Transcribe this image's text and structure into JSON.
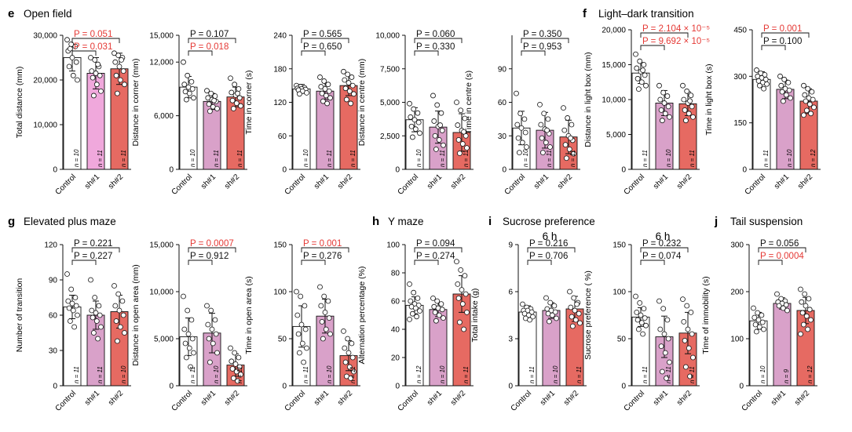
{
  "figure": {
    "panels": [
      {
        "letter": "e",
        "title": "Open field"
      },
      {
        "letter": "f",
        "title": "Light–dark transition"
      },
      {
        "letter": "g",
        "title": "Elevated plus maze"
      },
      {
        "letter": "h",
        "title": "Y maze"
      },
      {
        "letter": "i",
        "title": "Sucrose preference"
      },
      {
        "letter": "j",
        "title": "Tail suspension"
      }
    ]
  },
  "colors": {
    "control": "#ffffff",
    "sh1": "#d9a1c9",
    "sh1_bright": "#f0a8dc",
    "sh2": "#e66a62",
    "significant": "#e53935",
    "ns": "#111111"
  },
  "chart_data": [
    {
      "type": "bar",
      "id": "total-distance",
      "ylabel": "Total distance (mm)",
      "ylim": [
        0,
        30000
      ],
      "yticks": [
        "0",
        "10,000",
        "20,000",
        "30,000"
      ],
      "categories": [
        "Control",
        "sh#1",
        "sh#2"
      ],
      "values": [
        25000,
        21500,
        22500
      ],
      "errors": [
        3000,
        3500,
        3500
      ],
      "n": [
        "n = 10",
        "n = 11",
        "n = 11"
      ],
      "pvalues": [
        {
          "text": "P = 0.051",
          "sig": true
        },
        {
          "text": "P = 0.031",
          "sig": true
        }
      ],
      "points": [
        [
          29000,
          28000,
          27500,
          26500,
          25000,
          24000,
          23000,
          21000,
          20000,
          27000
        ],
        [
          25000,
          24500,
          23000,
          22000,
          21500,
          21000,
          20500,
          19000,
          17500,
          16500,
          23500
        ],
        [
          26000,
          25500,
          25000,
          24000,
          23000,
          22000,
          21000,
          20000,
          19000,
          17000,
          24500
        ]
      ]
    },
    {
      "type": "bar",
      "id": "distance-corner",
      "ylabel": "Distance in corner (mm)",
      "ylim": [
        0,
        15000
      ],
      "yticks": [
        "0",
        "6,000",
        "12,000",
        "15,000"
      ],
      "categories": [
        "Control",
        "sh#1",
        "sh#2"
      ],
      "values": [
        9200,
        7600,
        8100
      ],
      "errors": [
        1200,
        900,
        1100
      ],
      "n": [
        "n = 10",
        "n = 11",
        "n = 11"
      ],
      "pvalues": [
        {
          "text": "P = 0.107",
          "sig": false
        },
        {
          "text": "P = 0.018",
          "sig": true
        }
      ],
      "points": [
        [
          12000,
          10500,
          9800,
          9500,
          9200,
          9000,
          8700,
          8500,
          8000,
          7800
        ],
        [
          8800,
          8500,
          8200,
          8000,
          7800,
          7600,
          7300,
          7000,
          6800,
          6500,
          7700
        ],
        [
          10200,
          9500,
          9000,
          8600,
          8300,
          8000,
          7700,
          7400,
          7100,
          6800,
          8500
        ]
      ]
    },
    {
      "type": "bar",
      "id": "time-corner",
      "ylabel": "Time in corner (s)",
      "ylim": [
        0,
        240
      ],
      "yticks": [
        "0",
        "60",
        "120",
        "180",
        "240"
      ],
      "categories": [
        "Control",
        "sh#1",
        "sh#2"
      ],
      "values": [
        144,
        140,
        150
      ],
      "errors": [
        8,
        15,
        18
      ],
      "n": [
        "n = 10",
        "n = 11",
        "n = 11"
      ],
      "pvalues": [
        {
          "text": "P = 0.565",
          "sig": false
        },
        {
          "text": "P = 0.650",
          "sig": false
        }
      ],
      "points": [
        [
          150,
          148,
          146,
          145,
          144,
          143,
          142,
          140,
          137,
          135
        ],
        [
          165,
          158,
          152,
          148,
          144,
          140,
          136,
          132,
          128,
          122,
          118
        ],
        [
          175,
          170,
          165,
          160,
          155,
          150,
          145,
          140,
          135,
          125,
          118
        ]
      ]
    },
    {
      "type": "bar",
      "id": "distance-centre",
      "ylabel": "Distance in centre (mm)",
      "ylim": [
        0,
        10000
      ],
      "yticks": [
        "0",
        "2,500",
        "5,000",
        "7,500",
        "10,000"
      ],
      "categories": [
        "Control",
        "sh#1",
        "sh#2"
      ],
      "values": [
        3700,
        3150,
        2750
      ],
      "errors": [
        900,
        1200,
        1400
      ],
      "n": [
        "n = 10",
        "n = 11",
        "n = 11"
      ],
      "pvalues": [
        {
          "text": "P = 0.060",
          "sig": false
        },
        {
          "text": "P = 0.330",
          "sig": false
        }
      ],
      "points": [
        [
          4900,
          4500,
          4200,
          3900,
          3700,
          3500,
          3200,
          3000,
          2700,
          2400
        ],
        [
          5500,
          4800,
          4200,
          3600,
          3200,
          2900,
          2500,
          2200,
          1800,
          1500,
          3300
        ],
        [
          5000,
          4400,
          3800,
          3300,
          2900,
          2500,
          2200,
          1900,
          1600,
          1200,
          2800
        ]
      ]
    },
    {
      "type": "bar",
      "id": "time-centre",
      "ylabel": "Time in centre (s)",
      "ylim": [
        0,
        120
      ],
      "yticks": [
        "0",
        "30",
        "60",
        "90"
      ],
      "categories": [
        "Control",
        "sh#1",
        "sh#2"
      ],
      "values": [
        37,
        35,
        29
      ],
      "errors": [
        15,
        16,
        15
      ],
      "n": [
        "n = 10",
        "n = 11",
        "n = 11"
      ],
      "pvalues": [
        {
          "text": "P = 0.350",
          "sig": false
        },
        {
          "text": "P = 0.953",
          "sig": false
        }
      ],
      "points": [
        [
          68,
          50,
          45,
          40,
          37,
          33,
          28,
          24,
          20,
          15
        ],
        [
          58,
          50,
          45,
          40,
          36,
          32,
          28,
          24,
          20,
          15,
          35
        ],
        [
          55,
          46,
          40,
          35,
          30,
          26,
          22,
          18,
          14,
          10,
          28
        ]
      ]
    },
    {
      "type": "bar",
      "id": "distance-light-box",
      "ylabel": "Distance in light box (mm)",
      "ylim": [
        0,
        20000
      ],
      "yticks": [
        "0",
        "5,000",
        "10,000",
        "15,000",
        "20,000"
      ],
      "categories": [
        "Control",
        "sh#1",
        "sh#2"
      ],
      "values": [
        13800,
        9500,
        9400
      ],
      "errors": [
        1500,
        1800,
        1700
      ],
      "n": [
        "n = 11",
        "n = 10",
        "n = 11"
      ],
      "pvalues": [
        {
          "text": "P = 2.104 × 10⁻⁵",
          "sig": true
        },
        {
          "text": "P = 9.692 × 10⁻⁵",
          "sig": true
        }
      ],
      "points": [
        [
          16500,
          15500,
          15000,
          14500,
          14000,
          13500,
          13000,
          12500,
          12000,
          11500,
          14200
        ],
        [
          12000,
          11000,
          10500,
          10000,
          9500,
          9000,
          8500,
          8000,
          7500,
          7000
        ],
        [
          12000,
          11200,
          10600,
          10000,
          9500,
          9000,
          8500,
          8000,
          7500,
          7000,
          9800
        ]
      ]
    },
    {
      "type": "bar",
      "id": "time-light-box",
      "ylabel": "Time in light box (s)",
      "ylim": [
        0,
        450
      ],
      "yticks": [
        "0",
        "150",
        "300",
        "450"
      ],
      "categories": [
        "Control",
        "sh#1",
        "sh#2"
      ],
      "values": [
        290,
        258,
        220
      ],
      "errors": [
        25,
        30,
        40
      ],
      "n": [
        "n = 11",
        "n = 10",
        "n = 12"
      ],
      "pvalues": [
        {
          "text": "P = 0.001",
          "sig": true
        },
        {
          "text": "P = 0.100",
          "sig": false
        }
      ],
      "points": [
        [
          320,
          310,
          305,
          300,
          295,
          290,
          285,
          280,
          275,
          270,
          260
        ],
        [
          300,
          290,
          280,
          270,
          260,
          255,
          250,
          240,
          230,
          220
        ],
        [
          270,
          260,
          250,
          240,
          230,
          225,
          220,
          210,
          200,
          190,
          180,
          175
        ]
      ]
    },
    {
      "type": "bar",
      "id": "number-transition",
      "ylabel": "Number of transition",
      "ylim": [
        0,
        120
      ],
      "yticks": [
        "0",
        "30",
        "60",
        "90",
        "120"
      ],
      "categories": [
        "Control",
        "sh#1",
        "sh#2"
      ],
      "values": [
        67,
        60,
        63
      ],
      "errors": [
        10,
        12,
        14
      ],
      "n": [
        "n = 11",
        "n = 11",
        "n = 10"
      ],
      "pvalues": [
        {
          "text": "P = 0.221",
          "sig": false
        },
        {
          "text": "P = 0.227",
          "sig": false
        }
      ],
      "points": [
        [
          95,
          82,
          75,
          72,
          70,
          68,
          66,
          64,
          60,
          55,
          50
        ],
        [
          90,
          75,
          68,
          64,
          62,
          60,
          58,
          55,
          50,
          45,
          40
        ],
        [
          85,
          78,
          72,
          68,
          64,
          60,
          55,
          50,
          45,
          38
        ]
      ]
    },
    {
      "type": "bar",
      "id": "distance-open-area",
      "ylabel": "Distance in open area (mm)",
      "ylim": [
        0,
        15000
      ],
      "yticks": [
        "0",
        "5,000",
        "10,000",
        "15,000"
      ],
      "categories": [
        "Control",
        "sh#1",
        "sh#2"
      ],
      "values": [
        5200,
        5600,
        2200
      ],
      "errors": [
        2000,
        2100,
        1200
      ],
      "n": [
        "n = 11",
        "n = 10",
        "n = 11"
      ],
      "pvalues": [
        {
          "text": "P = 0.0007",
          "sig": true
        },
        {
          "text": "P = 0.912",
          "sig": false
        }
      ],
      "points": [
        [
          9500,
          8000,
          7000,
          6000,
          5500,
          5000,
          4500,
          4000,
          3500,
          3000,
          2000
        ],
        [
          8500,
          8000,
          7000,
          6500,
          6000,
          5500,
          5000,
          4500,
          3500,
          2500
        ],
        [
          4000,
          3500,
          3000,
          2600,
          2300,
          2000,
          1800,
          1500,
          1200,
          800,
          500
        ]
      ]
    },
    {
      "type": "bar",
      "id": "time-open-area",
      "ylabel": "Time in open area (s)",
      "ylim": [
        0,
        150
      ],
      "yticks": [
        "0",
        "50",
        "100",
        "150"
      ],
      "categories": [
        "Control",
        "sh#1",
        "sh#2"
      ],
      "values": [
        63,
        74,
        32
      ],
      "errors": [
        22,
        18,
        16
      ],
      "n": [
        "n = 11",
        "n = 10",
        "n = 11"
      ],
      "pvalues": [
        {
          "text": "P = 0.001",
          "sig": true
        },
        {
          "text": "P = 0.276",
          "sig": false
        }
      ],
      "points": [
        [
          100,
          95,
          85,
          75,
          65,
          60,
          55,
          45,
          40,
          35,
          25
        ],
        [
          105,
          95,
          90,
          85,
          78,
          72,
          68,
          60,
          55,
          50
        ],
        [
          58,
          50,
          45,
          40,
          35,
          30,
          25,
          20,
          15,
          10,
          8
        ]
      ]
    },
    {
      "type": "bar",
      "id": "alternation",
      "ylabel": "Alternation percentage (%)",
      "ylim": [
        0,
        100
      ],
      "yticks": [
        "0",
        "20",
        "40",
        "60",
        "80",
        "100"
      ],
      "categories": [
        "Control",
        "sh#1",
        "sh#2"
      ],
      "values": [
        57,
        54,
        65
      ],
      "errors": [
        6,
        5,
        13
      ],
      "n": [
        "n = 12",
        "n = 10",
        "n = 11"
      ],
      "pvalues": [
        {
          "text": "P = 0.094",
          "sig": false
        },
        {
          "text": "P = 0.274",
          "sig": false
        }
      ],
      "points": [
        [
          72,
          66,
          62,
          60,
          58,
          57,
          56,
          55,
          53,
          51,
          49,
          47
        ],
        [
          62,
          60,
          58,
          56,
          55,
          54,
          52,
          50,
          48,
          46
        ],
        [
          88,
          82,
          78,
          72,
          68,
          65,
          62,
          58,
          52,
          45,
          40
        ]
      ]
    },
    {
      "type": "bar",
      "id": "total-intake",
      "subtitle": "6 h",
      "ylabel": "Total intake (g)",
      "ylim": [
        0,
        9
      ],
      "yticks": [
        "0",
        "3",
        "6",
        "9"
      ],
      "categories": [
        "Control",
        "sh#1",
        "sh#2"
      ],
      "values": [
        4.7,
        4.8,
        4.9
      ],
      "errors": [
        0.4,
        0.5,
        0.8
      ],
      "n": [
        "n = 11",
        "n = 10",
        "n = 11"
      ],
      "pvalues": [
        {
          "text": "P = 0.216",
          "sig": false
        },
        {
          "text": "P = 0.706",
          "sig": false
        }
      ],
      "points": [
        [
          5.2,
          5.0,
          4.9,
          4.8,
          4.8,
          4.7,
          4.6,
          4.5,
          4.4,
          4.3,
          4.2
        ],
        [
          5.6,
          5.3,
          5.1,
          4.9,
          4.8,
          4.7,
          4.6,
          4.5,
          4.3,
          4.1
        ],
        [
          6.0,
          5.6,
          5.3,
          5.0,
          4.8,
          4.6,
          4.4,
          4.2,
          4.0,
          3.8,
          5.2
        ]
      ]
    },
    {
      "type": "bar",
      "id": "sucrose-preference",
      "subtitle": "6 h",
      "ylabel": "Sucrose preference ( %)",
      "ylim": [
        0,
        150
      ],
      "yticks": [
        "0",
        "50",
        "100",
        "150"
      ],
      "categories": [
        "Control",
        "sh#1",
        "sh#2"
      ],
      "values": [
        73,
        52,
        56
      ],
      "errors": [
        10,
        22,
        22
      ],
      "n": [
        "n = 11",
        "n = 11",
        "n = 11"
      ],
      "pvalues": [
        {
          "text": "P = 0.232",
          "sig": false
        },
        {
          "text": "P = 0.074",
          "sig": false
        }
      ],
      "points": [
        [
          95,
          88,
          82,
          78,
          75,
          72,
          70,
          67,
          64,
          60,
          55
        ],
        [
          90,
          82,
          70,
          60,
          55,
          50,
          42,
          35,
          25,
          15,
          8
        ],
        [
          92,
          85,
          78,
          68,
          60,
          55,
          48,
          40,
          30,
          20,
          10
        ]
      ]
    },
    {
      "type": "bar",
      "id": "time-immobility",
      "ylabel": "Time of immobility (s)",
      "ylim": [
        0,
        300
      ],
      "yticks": [
        "0",
        "100",
        "200",
        "300"
      ],
      "categories": [
        "Control",
        "sh#1",
        "sh#2"
      ],
      "values": [
        138,
        175,
        160
      ],
      "errors": [
        18,
        12,
        28
      ],
      "n": [
        "n = 10",
        "n = 9",
        "n = 12"
      ],
      "pvalues": [
        {
          "text": "P = 0.056",
          "sig": false
        },
        {
          "text": "P = 0.0004",
          "sig": true
        }
      ],
      "points": [
        [
          165,
          155,
          150,
          145,
          140,
          135,
          130,
          125,
          120,
          115
        ],
        [
          195,
          185,
          180,
          178,
          175,
          172,
          170,
          165,
          160
        ],
        [
          205,
          195,
          185,
          178,
          170,
          162,
          155,
          148,
          140,
          130,
          120,
          110
        ]
      ]
    }
  ]
}
